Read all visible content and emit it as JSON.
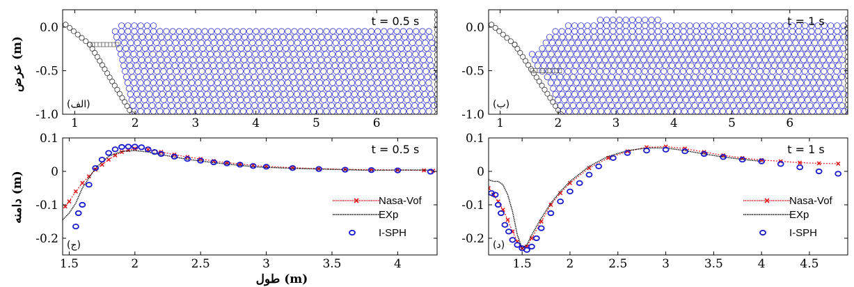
{
  "figure": {
    "ylabel_top": "عرض (m)",
    "ylabel_bottom": "دامنه (m)",
    "xlabel_bottom": "طول (m)"
  },
  "chart_data": [
    {
      "type": "scatter",
      "panel_label": "(الف)",
      "time_label": "t = 0.5 s",
      "xlim": [
        0.8,
        7.0
      ],
      "ylim": [
        -1.0,
        0.2
      ],
      "xticks": [
        "1",
        "2",
        "3",
        "4",
        "5",
        "6"
      ],
      "yticks": [
        "0.0",
        "-0.5",
        "-1.0"
      ],
      "boundary": {
        "x": [
          0.85,
          1.25,
          1.95,
          7.0,
          7.0
        ],
        "y": [
          0.03,
          -0.2,
          -1.0,
          -1.0,
          0.2
        ]
      },
      "structure": {
        "x": [
          1.3,
          1.72
        ],
        "y": [
          -0.2,
          -0.2
        ]
      },
      "fluid_surface": {
        "x": [
          1.62,
          1.72,
          1.75,
          1.85,
          2.0,
          2.5,
          3.0,
          4.0,
          5.0,
          6.0,
          7.0
        ],
        "y": [
          -0.07,
          0.0,
          0.02,
          0.03,
          0.03,
          0.01,
          0.0,
          0.0,
          -0.01,
          -0.01,
          0.0
        ]
      },
      "fluid_left": {
        "x": [
          1.62,
          1.75,
          1.85,
          1.95
        ],
        "y": [
          -0.05,
          -0.4,
          -0.7,
          -1.0
        ]
      }
    },
    {
      "type": "scatter",
      "panel_label": "(ب)",
      "time_label": "t = 1 s",
      "xlim": [
        0.8,
        7.0
      ],
      "ylim": [
        -1.0,
        0.2
      ],
      "xticks": [
        "1",
        "2",
        "3",
        "4",
        "5",
        "6"
      ],
      "yticks": [
        "0.0",
        "-0.5",
        "-1.0"
      ],
      "boundary": {
        "x": [
          0.85,
          1.25,
          2.05,
          7.0,
          7.0
        ],
        "y": [
          0.03,
          -0.2,
          -1.0,
          -1.0,
          0.1
        ]
      },
      "structure": {
        "x": [
          1.55,
          2.05
        ],
        "y": [
          -0.5,
          -0.5
        ]
      },
      "fluid_surface": {
        "x": [
          1.35,
          1.5,
          1.7,
          1.9,
          2.1,
          2.4,
          2.8,
          3.2,
          4.0,
          5.0,
          6.0,
          6.8,
          7.0
        ],
        "y": [
          -0.1,
          -0.3,
          -0.25,
          -0.05,
          0.02,
          0.07,
          0.09,
          0.09,
          0.08,
          0.06,
          0.04,
          0.02,
          0.04
        ]
      },
      "fluid_left": {
        "x": [
          1.35,
          1.6,
          1.8,
          2.05
        ],
        "y": [
          -0.1,
          -0.45,
          -0.6,
          -1.0
        ]
      }
    },
    {
      "type": "line",
      "panel_label": "(ج)",
      "time_label": "t = 0.5 s",
      "xlim": [
        1.45,
        4.3
      ],
      "ylim": [
        -0.25,
        0.1
      ],
      "xticks": [
        "1.5",
        "2",
        "2.5",
        "3",
        "3.5",
        "4"
      ],
      "yticks": [
        "0.1",
        "0",
        "-0.1",
        "-0.2"
      ],
      "series": [
        {
          "name": "Nasa-Vof",
          "color": "#e0191b",
          "x": [
            1.47,
            1.5,
            1.55,
            1.6,
            1.65,
            1.7,
            1.75,
            1.8,
            1.85,
            1.9,
            1.95,
            2.0,
            2.1,
            2.2,
            2.3,
            2.4,
            2.5,
            2.6,
            2.7,
            2.8,
            2.9,
            3.0,
            3.2,
            3.4,
            3.6,
            3.8,
            4.0,
            4.2,
            4.27
          ],
          "y": [
            -0.105,
            -0.09,
            -0.06,
            -0.035,
            -0.015,
            0.005,
            0.02,
            0.035,
            0.048,
            0.058,
            0.064,
            0.068,
            0.065,
            0.058,
            0.05,
            0.043,
            0.037,
            0.031,
            0.026,
            0.022,
            0.018,
            0.015,
            0.011,
            0.008,
            0.006,
            0.005,
            0.004,
            0.003,
            0.002
          ]
        },
        {
          "name": "EXp",
          "color": "#000000",
          "x": [
            1.45,
            1.5,
            1.55,
            1.6,
            1.7,
            1.8,
            1.9,
            2.0,
            2.1,
            2.2,
            2.3,
            2.4,
            2.5,
            2.6,
            2.7,
            2.8,
            2.9,
            3.0,
            3.2,
            3.4,
            3.6,
            3.8,
            4.0,
            4.2,
            4.27
          ],
          "y": [
            -0.145,
            -0.125,
            -0.095,
            -0.05,
            0.01,
            0.045,
            0.06,
            0.062,
            0.058,
            0.05,
            0.043,
            0.036,
            0.031,
            0.026,
            0.022,
            0.018,
            0.014,
            0.012,
            0.009,
            0.007,
            0.005,
            0.003,
            0.004,
            0.004,
            0.003
          ]
        },
        {
          "name": "I-SPH",
          "color": "#1a1acc",
          "x": [
            1.55,
            1.57,
            1.6,
            1.65,
            1.7,
            1.75,
            1.8,
            1.85,
            1.9,
            1.95,
            2.0,
            2.05,
            2.1,
            2.15,
            2.2,
            2.3,
            2.4,
            2.5,
            2.6,
            2.7,
            2.8,
            2.9,
            3.0,
            3.2,
            3.4,
            3.6,
            3.8,
            4.0,
            4.25
          ],
          "y": [
            -0.165,
            -0.125,
            -0.1,
            -0.04,
            0.01,
            0.035,
            0.055,
            0.066,
            0.073,
            0.074,
            0.074,
            0.072,
            0.066,
            0.058,
            0.052,
            0.044,
            0.037,
            0.032,
            0.027,
            0.024,
            0.02,
            0.016,
            0.014,
            0.01,
            0.007,
            0.005,
            0.004,
            0.003,
            -0.001
          ]
        }
      ]
    },
    {
      "type": "line",
      "panel_label": "(د)",
      "time_label": "t = 1 s",
      "xlim": [
        1.15,
        4.9
      ],
      "ylim": [
        -0.25,
        0.1
      ],
      "xticks": [
        "1.5",
        "2",
        "2.5",
        "3",
        "3.5",
        "4",
        "4.5"
      ],
      "yticks": [
        "0.1",
        "0",
        "-0.1",
        "-0.2"
      ],
      "series": [
        {
          "name": "Nasa-Vof",
          "color": "#e0191b",
          "x": [
            1.15,
            1.2,
            1.25,
            1.3,
            1.35,
            1.4,
            1.45,
            1.5,
            1.55,
            1.6,
            1.7,
            1.8,
            1.9,
            2.0,
            2.2,
            2.4,
            2.6,
            2.8,
            3.0,
            3.2,
            3.4,
            3.6,
            3.8,
            4.0,
            4.2,
            4.4,
            4.6,
            4.8
          ],
          "y": [
            -0.05,
            -0.07,
            -0.09,
            -0.115,
            -0.145,
            -0.18,
            -0.21,
            -0.23,
            -0.225,
            -0.2,
            -0.15,
            -0.1,
            -0.065,
            -0.035,
            0.01,
            0.04,
            0.06,
            0.072,
            0.074,
            0.068,
            0.058,
            0.048,
            0.04,
            0.034,
            0.03,
            0.026,
            0.024,
            0.023
          ]
        },
        {
          "name": "EXp",
          "color": "#000000",
          "x": [
            1.15,
            1.2,
            1.25,
            1.3,
            1.35,
            1.4,
            1.45,
            1.5,
            1.55,
            1.6,
            1.7,
            1.8,
            1.9,
            2.0,
            2.2,
            2.4,
            2.6,
            2.8,
            3.0,
            3.2,
            3.4,
            3.6,
            3.8,
            4.0
          ],
          "y": [
            -0.025,
            -0.03,
            -0.03,
            -0.04,
            -0.07,
            -0.12,
            -0.19,
            -0.23,
            -0.22,
            -0.19,
            -0.14,
            -0.095,
            -0.06,
            -0.03,
            0.015,
            0.045,
            0.062,
            0.07,
            0.07,
            0.062,
            0.052,
            0.043,
            0.036,
            0.03
          ]
        },
        {
          "name": "I-SPH",
          "color": "#1a1acc",
          "x": [
            1.18,
            1.22,
            1.25,
            1.28,
            1.32,
            1.36,
            1.4,
            1.45,
            1.5,
            1.55,
            1.6,
            1.65,
            1.7,
            1.8,
            1.9,
            2.0,
            2.1,
            2.2,
            2.3,
            2.45,
            2.6,
            2.8,
            3.0,
            3.2,
            3.4,
            3.6,
            3.8,
            4.0,
            4.2,
            4.4,
            4.6,
            4.8
          ],
          "y": [
            -0.065,
            -0.07,
            -0.1,
            -0.125,
            -0.16,
            -0.18,
            -0.205,
            -0.22,
            -0.23,
            -0.235,
            -0.225,
            -0.2,
            -0.17,
            -0.125,
            -0.09,
            -0.06,
            -0.035,
            -0.01,
            0.015,
            0.04,
            0.055,
            0.062,
            0.065,
            0.06,
            0.052,
            0.043,
            0.035,
            0.03,
            0.022,
            0.012,
            0.0,
            -0.007
          ]
        }
      ]
    }
  ]
}
